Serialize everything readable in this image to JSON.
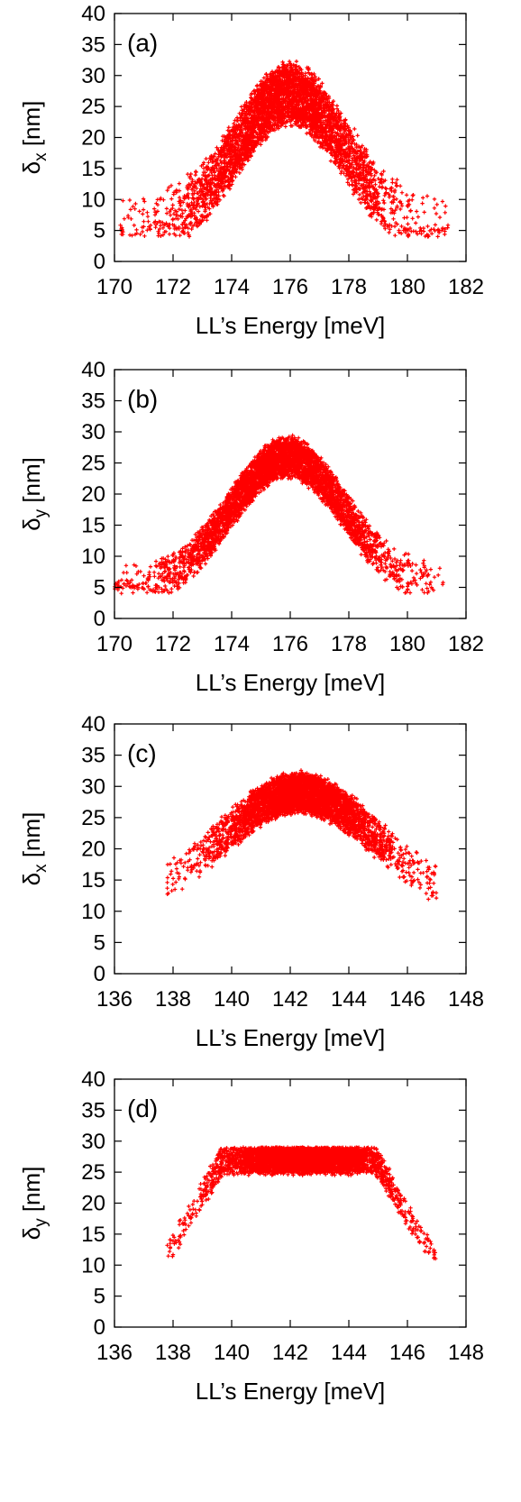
{
  "chart_data": [
    {
      "type": "scatter",
      "panel_label": "(a)",
      "xlabel": "LL’s Energy [meV]",
      "ylabel": {
        "base": "δ",
        "sub": "x",
        "unit": " [nm]"
      },
      "xlim": [
        170,
        182
      ],
      "ylim": [
        0,
        40
      ],
      "xticks": [
        "170",
        "172",
        "174",
        "176",
        "178",
        "180",
        "182"
      ],
      "yticks": [
        "0",
        "5",
        "10",
        "15",
        "20",
        "25",
        "30",
        "35",
        "40"
      ],
      "marker_color": "#ff0000",
      "points_description": "dense cloud; peak ~28 nm near 176 meV, falling to ~5 nm at 171-181 meV",
      "profile": {
        "center": 176.0,
        "spread": 1.85,
        "ymin": 5,
        "ypeak": 27,
        "xmin": 170.2,
        "xmax": 181.4,
        "noise": 5.5
      }
    },
    {
      "type": "scatter",
      "panel_label": "(b)",
      "xlabel": "LL’s Energy [meV]",
      "ylabel": {
        "base": "δ",
        "sub": "y",
        "unit": " [nm]"
      },
      "xlim": [
        170,
        182
      ],
      "ylim": [
        0,
        40
      ],
      "xticks": [
        "170",
        "172",
        "174",
        "176",
        "178",
        "180",
        "182"
      ],
      "yticks": [
        "0",
        "5",
        "10",
        "15",
        "20",
        "25",
        "30",
        "35",
        "40"
      ],
      "marker_color": "#ff0000",
      "points_description": "bell-shaped cloud capped near 29 nm around 176 meV, down to ~5 nm at edges",
      "profile": {
        "center": 175.9,
        "spread": 1.9,
        "ymin": 5,
        "ypeak": 26,
        "xmin": 170.0,
        "xmax": 181.3,
        "noise": 3.6,
        "cap": 30
      }
    },
    {
      "type": "scatter",
      "panel_label": "(c)",
      "xlabel": "LL’s Energy [meV]",
      "ylabel": {
        "base": "δ",
        "sub": "x",
        "unit": " [nm]"
      },
      "xlim": [
        136,
        148
      ],
      "ylim": [
        0,
        40
      ],
      "xticks": [
        "136",
        "138",
        "140",
        "142",
        "144",
        "146",
        "148"
      ],
      "yticks": [
        "0",
        "5",
        "10",
        "15",
        "20",
        "25",
        "30",
        "35",
        "40"
      ],
      "marker_color": "#ff0000",
      "points_description": "dome-shaped cloud from ~12 nm at 138 meV to ~31 nm at 142 meV and back to ~12 nm at 146 meV",
      "profile": {
        "center": 142.3,
        "spread": 2.6,
        "ymin": 11,
        "ypeak": 29,
        "xmin": 137.8,
        "xmax": 147.0,
        "noise": 3.6
      }
    },
    {
      "type": "scatter",
      "panel_label": "(d)",
      "xlabel": "LL’s Energy [meV]",
      "ylabel": {
        "base": "δ",
        "sub": "y",
        "unit": " [nm]"
      },
      "xlim": [
        136,
        148
      ],
      "ylim": [
        0,
        40
      ],
      "xticks": [
        "136",
        "138",
        "140",
        "142",
        "144",
        "146",
        "148"
      ],
      "yticks": [
        "0",
        "5",
        "10",
        "15",
        "20",
        "25",
        "30",
        "35",
        "40"
      ],
      "marker_color": "#ff0000",
      "points_description": "flat-topped band ~22-29 nm between 139.5 and 145 meV, tails down to ~13 nm at 138 and 146 meV",
      "profile": {
        "center": 142.3,
        "spread": 3.2,
        "ymin": 12,
        "ypeak": 27,
        "xmin": 137.8,
        "xmax": 147.0,
        "noise": 2.6,
        "cap": 29,
        "flat": true
      }
    }
  ]
}
